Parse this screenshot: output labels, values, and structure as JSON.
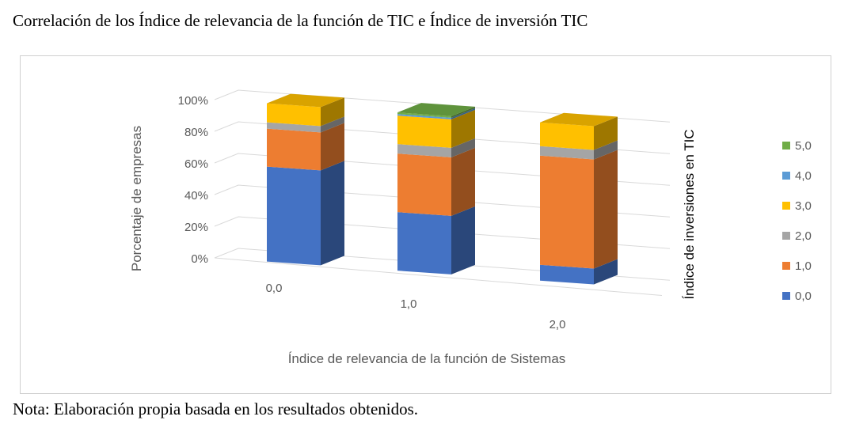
{
  "title": "Correlación de los Índice de relevancia de la función de TIC e Índice de inversión TIC",
  "note": "Nota: Elaboración propia basada en los resultados obtenidos.",
  "chart_data": {
    "type": "bar",
    "subtype": "3d-stacked-percent",
    "xlabel": "Índice de relevancia de la función de Sistemas",
    "ylabel": "Porcentaje de empresas",
    "ylim": [
      0,
      100
    ],
    "y_ticks": [
      "0%",
      "20%",
      "40%",
      "60%",
      "80%",
      "100%"
    ],
    "categories": [
      "0,0",
      "1,0",
      "2,0"
    ],
    "legend_title": "Índice de inversiones en TIC",
    "legend_position": "right",
    "series": [
      {
        "name": "0,0",
        "color": "#4472C4",
        "values": [
          60,
          37,
          10
        ]
      },
      {
        "name": "1,0",
        "color": "#ED7D31",
        "values": [
          24,
          37,
          69
        ]
      },
      {
        "name": "2,0",
        "color": "#A5A5A5",
        "values": [
          4,
          6,
          6
        ]
      },
      {
        "name": "3,0",
        "color": "#FFC000",
        "values": [
          12,
          18,
          15
        ]
      },
      {
        "name": "4,0",
        "color": "#5B9BD5",
        "values": [
          0,
          1,
          0
        ]
      },
      {
        "name": "5,0",
        "color": "#70AD47",
        "values": [
          0,
          1,
          0
        ]
      }
    ]
  }
}
